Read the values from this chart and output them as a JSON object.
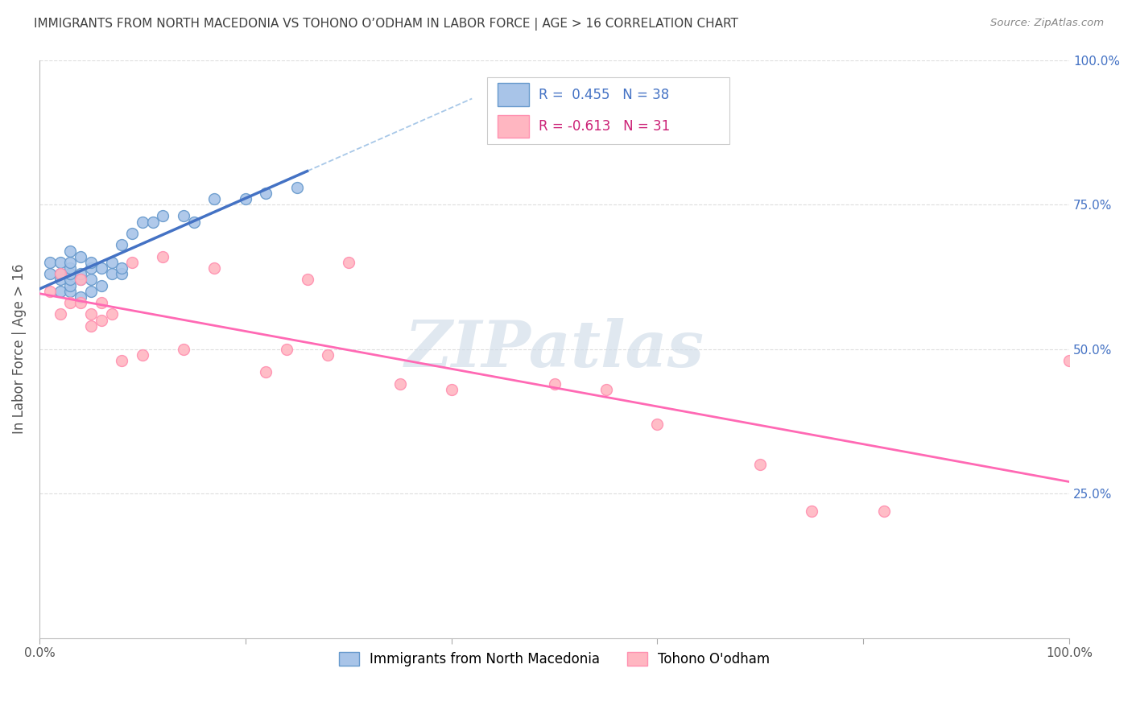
{
  "title": "IMMIGRANTS FROM NORTH MACEDONIA VS TOHONO O’ODHAM IN LABOR FORCE | AGE > 16 CORRELATION CHART",
  "source": "Source: ZipAtlas.com",
  "ylabel": "In Labor Force | Age > 16",
  "xlabel": "",
  "xlim": [
    0.0,
    1.0
  ],
  "ylim": [
    0.0,
    1.0
  ],
  "xticks": [
    0.0,
    0.2,
    0.4,
    0.6,
    0.8,
    1.0
  ],
  "yticks": [
    0.0,
    0.25,
    0.5,
    0.75,
    1.0
  ],
  "xtick_labels": [
    "0.0%",
    "",
    "",
    "",
    "",
    "100.0%"
  ],
  "blue_R": 0.455,
  "blue_N": 38,
  "pink_R": -0.613,
  "pink_N": 31,
  "blue_scatter_x": [
    0.01,
    0.01,
    0.02,
    0.02,
    0.02,
    0.02,
    0.03,
    0.03,
    0.03,
    0.03,
    0.03,
    0.03,
    0.03,
    0.04,
    0.04,
    0.04,
    0.04,
    0.05,
    0.05,
    0.05,
    0.05,
    0.06,
    0.06,
    0.07,
    0.07,
    0.08,
    0.08,
    0.08,
    0.09,
    0.1,
    0.11,
    0.12,
    0.14,
    0.15,
    0.17,
    0.2,
    0.22,
    0.25
  ],
  "blue_scatter_y": [
    0.63,
    0.65,
    0.6,
    0.62,
    0.63,
    0.65,
    0.6,
    0.61,
    0.62,
    0.63,
    0.64,
    0.65,
    0.67,
    0.59,
    0.62,
    0.63,
    0.66,
    0.6,
    0.62,
    0.64,
    0.65,
    0.61,
    0.64,
    0.63,
    0.65,
    0.63,
    0.64,
    0.68,
    0.7,
    0.72,
    0.72,
    0.73,
    0.73,
    0.72,
    0.76,
    0.76,
    0.77,
    0.78
  ],
  "pink_scatter_x": [
    0.01,
    0.02,
    0.02,
    0.03,
    0.04,
    0.04,
    0.05,
    0.05,
    0.06,
    0.06,
    0.07,
    0.08,
    0.09,
    0.1,
    0.12,
    0.14,
    0.17,
    0.22,
    0.24,
    0.26,
    0.28,
    0.3,
    0.35,
    0.4,
    0.5,
    0.55,
    0.6,
    0.7,
    0.75,
    0.82,
    1.0
  ],
  "pink_scatter_y": [
    0.6,
    0.56,
    0.63,
    0.58,
    0.58,
    0.62,
    0.54,
    0.56,
    0.55,
    0.58,
    0.56,
    0.48,
    0.65,
    0.49,
    0.66,
    0.5,
    0.64,
    0.46,
    0.5,
    0.62,
    0.49,
    0.65,
    0.44,
    0.43,
    0.44,
    0.43,
    0.37,
    0.3,
    0.22,
    0.22,
    0.48
  ],
  "blue_line_color": "#4472C4",
  "blue_scatter_color": "#A8C4E8",
  "blue_scatter_edge": "#6699CC",
  "pink_line_color": "#FF69B4",
  "pink_scatter_color": "#FFB6C1",
  "pink_scatter_edge": "#FF90B0",
  "dashed_line_color": "#A8C8E8",
  "watermark_color": "#D0DCE8",
  "grid_color": "#DDDDDD",
  "title_color": "#404040",
  "axis_label_color": "#555555",
  "right_tick_color": "#4472C4",
  "legend_blue_text": "R =  0.455   N = 38",
  "legend_pink_text": "R = -0.613   N = 31",
  "legend_text_color": "#4472C4",
  "legend_pink_text_color": "#CC2277",
  "bottom_legend_blue": "Immigrants from North Macedonia",
  "bottom_legend_pink": "Tohono O'odham"
}
